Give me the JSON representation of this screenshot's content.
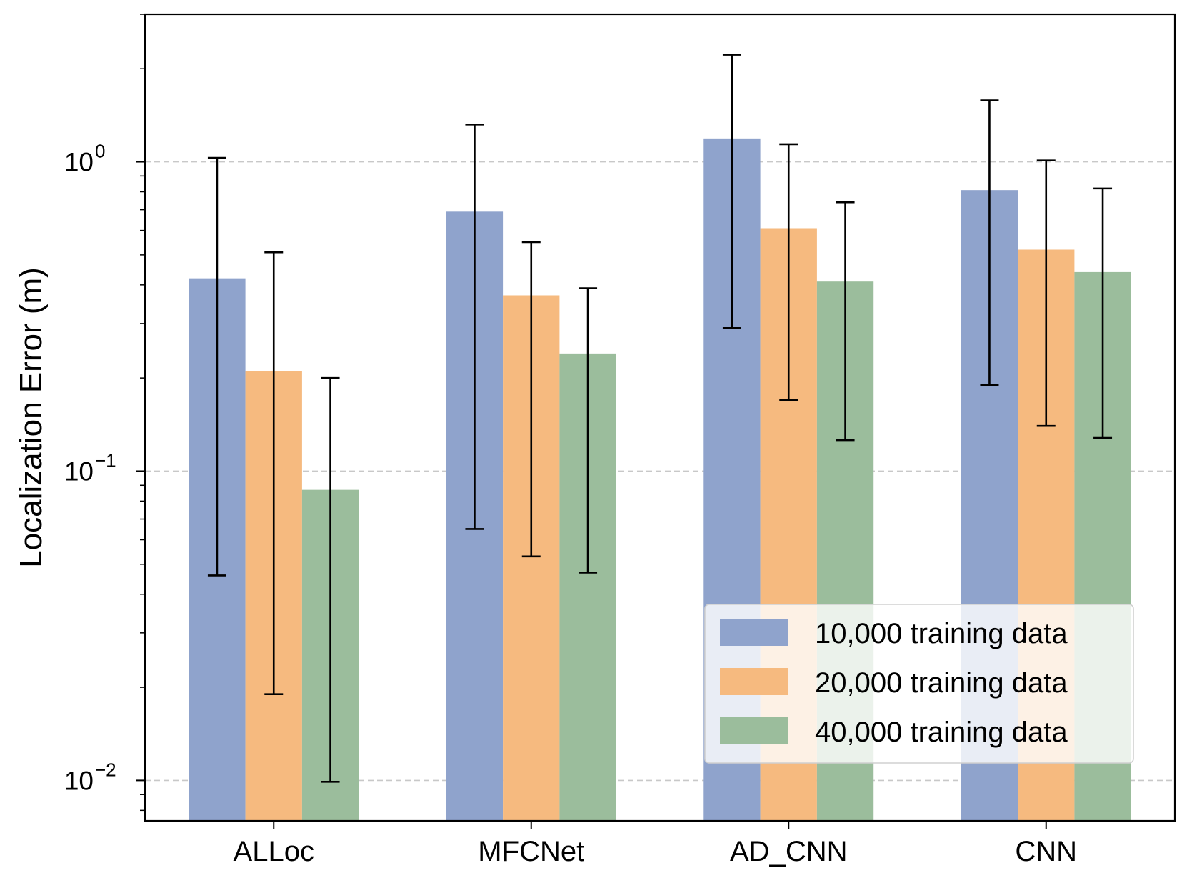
{
  "chart_data": {
    "type": "bar",
    "title": "",
    "xlabel": "",
    "ylabel": "Localization Error (m)",
    "yscale": "log",
    "ylim": [
      0.0074,
      3.0
    ],
    "grid": "y-dashed",
    "categories": [
      "ALLoc",
      "MFCNet",
      "AD_CNN",
      "CNN"
    ],
    "y_ticks": [
      {
        "value": 0.01,
        "base": "10",
        "exp": "−2"
      },
      {
        "value": 0.1,
        "base": "10",
        "exp": "−1"
      },
      {
        "value": 1.0,
        "base": "10",
        "exp": "0"
      }
    ],
    "series": [
      {
        "name": "10,000 training data",
        "color": "#8fa3cc",
        "values": [
          0.42,
          0.69,
          1.19,
          0.81
        ],
        "err_low": [
          0.046,
          0.065,
          0.29,
          0.19
        ],
        "err_high": [
          1.03,
          1.32,
          2.22,
          1.58
        ]
      },
      {
        "name": "20,000 training data",
        "color": "#f6ba7f",
        "values": [
          0.21,
          0.37,
          0.61,
          0.52
        ],
        "err_low": [
          0.019,
          0.053,
          0.17,
          0.14
        ],
        "err_high": [
          0.51,
          0.55,
          1.14,
          1.01
        ]
      },
      {
        "name": "40,000 training data",
        "color": "#9bbd9c",
        "values": [
          0.087,
          0.24,
          0.41,
          0.44
        ],
        "err_low": [
          0.0099,
          0.047,
          0.126,
          0.128
        ],
        "err_high": [
          0.2,
          0.39,
          0.74,
          0.82
        ]
      }
    ],
    "legend_position": "lower-right"
  }
}
